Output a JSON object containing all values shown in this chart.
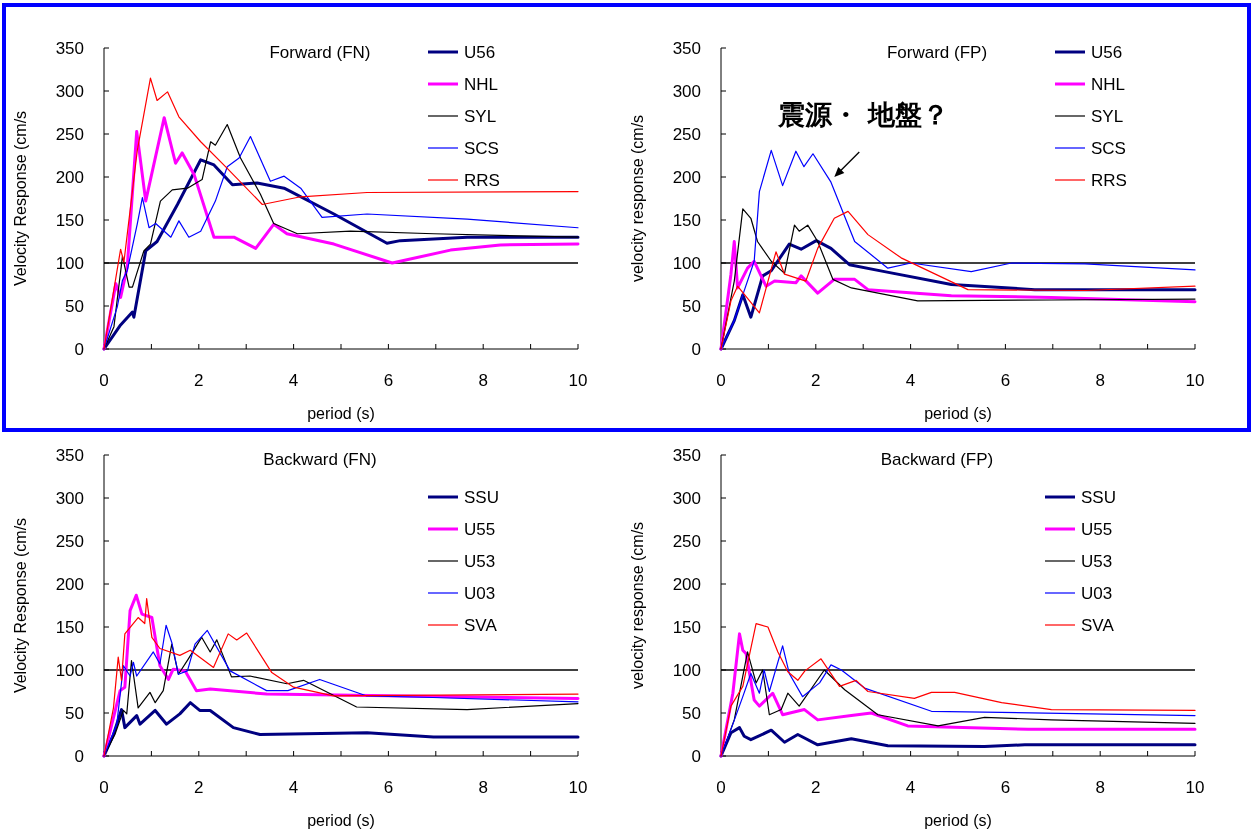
{
  "chart_data": [
    {
      "type": "line",
      "title": "Forward (FN)",
      "xlabel": "period (s)",
      "ylabel": "Velocity Response (cm/s",
      "xlim": [
        0,
        10
      ],
      "ylim": [
        0,
        350
      ],
      "xticks": [
        0,
        {
          "value": 1,
          "label": null
        },
        2,
        {
          "value": 3,
          "label": null
        },
        4,
        {
          "value": 5,
          "label": null
        },
        6,
        {
          "value": 7,
          "label": null
        },
        8,
        {
          "value": 9,
          "label": null
        },
        10
      ],
      "yticks": [
        0,
        50,
        100,
        150,
        200,
        250,
        300,
        350
      ],
      "legend": "top right",
      "line_style": "solid",
      "ref_lines": [
        {
          "axis": "y",
          "value": 100,
          "color": "#000000"
        }
      ],
      "series": [
        {
          "name": "U56",
          "color": "#000080",
          "x": [
            0,
            0.35,
            0.6,
            0.63,
            0.88,
            1.12,
            1.55,
            2.04,
            2.32,
            2.71,
            3.23,
            3.8,
            4.85,
            5.97,
            6.25,
            7.66,
            10
          ],
          "values": [
            0,
            28,
            43,
            37,
            114,
            125,
            168,
            220,
            214,
            191,
            193,
            187,
            157,
            123,
            126,
            130,
            130
          ]
        },
        {
          "name": "NHL",
          "color": "#ff00ff",
          "x": [
            0,
            0.25,
            0.35,
            0.49,
            0.69,
            0.88,
            1.27,
            1.51,
            1.65,
            1.9,
            2.32,
            2.74,
            3.2,
            3.58,
            3.86,
            4.85,
            6.08,
            7.31,
            8.36,
            10
          ],
          "values": [
            0,
            76,
            60,
            95,
            253,
            172,
            269,
            216,
            228,
            203,
            130,
            130,
            117,
            145,
            134,
            122,
            100,
            115,
            121,
            122
          ]
        },
        {
          "name": "SYL",
          "color": "#000000",
          "x": [
            0,
            0.21,
            0.39,
            0.53,
            0.6,
            0.84,
            0.98,
            1.19,
            1.44,
            1.76,
            2.07,
            2.25,
            2.35,
            2.6,
            2.88,
            3.3,
            3.58,
            4.08,
            5.2,
            6.96,
            10
          ],
          "values": [
            0,
            26,
            108,
            72,
            72,
            114,
            122,
            172,
            185,
            187,
            197,
            241,
            237,
            261,
            222,
            180,
            146,
            134,
            137,
            134,
            130
          ]
        },
        {
          "name": "SCS",
          "color": "#0000ff",
          "x": [
            0,
            0.28,
            0.39,
            0.49,
            0.7,
            0.81,
            0.95,
            1.09,
            1.41,
            1.58,
            1.79,
            2.04,
            2.35,
            2.6,
            2.85,
            3.09,
            3.51,
            3.8,
            4.15,
            4.6,
            5.55,
            7.66,
            10
          ],
          "values": [
            0,
            49,
            80,
            91,
            145,
            176,
            141,
            146,
            130,
            149,
            130,
            137,
            172,
            212,
            222,
            247,
            195,
            201,
            187,
            153,
            157,
            151,
            141
          ]
        },
        {
          "name": "RRS",
          "color": "#ff0000",
          "x": [
            0,
            0.35,
            0.42,
            0.7,
            0.98,
            1.12,
            1.34,
            1.58,
            2.04,
            2.6,
            3.34,
            4.15,
            5.55,
            10
          ],
          "values": [
            0,
            116,
            101,
            230,
            315,
            289,
            299,
            270,
            241,
            210,
            168,
            177,
            182,
            183
          ]
        }
      ]
    },
    {
      "type": "line",
      "title": "Forward (FP)",
      "xlabel": "period (s)",
      "ylabel": "velocity response (cm/s",
      "xlim": [
        0,
        10
      ],
      "ylim": [
        0,
        350
      ],
      "xticks": [
        0,
        {
          "value": 1,
          "label": null
        },
        2,
        {
          "value": 3,
          "label": null
        },
        4,
        {
          "value": 5,
          "label": null
        },
        6,
        {
          "value": 7,
          "label": null
        },
        8,
        {
          "value": 9,
          "label": null
        },
        10
      ],
      "yticks": [
        0,
        50,
        100,
        150,
        200,
        250,
        300,
        350
      ],
      "legend": "top right",
      "line_style": "solid",
      "ref_lines": [
        {
          "axis": "y",
          "value": 100,
          "color": "#000000"
        }
      ],
      "annotations": [
        {
          "text": "震源・ 地盤？",
          "x": 2.39,
          "y": 200
        }
      ],
      "series": [
        {
          "name": "U56",
          "color": "#000080",
          "x": [
            0,
            0.28,
            0.46,
            0.63,
            0.88,
            1.06,
            1.44,
            1.69,
            2.01,
            2.32,
            2.71,
            3.45,
            4.86,
            6.62,
            10
          ],
          "values": [
            0,
            33,
            63,
            37,
            85,
            91,
            122,
            116,
            126,
            117,
            98,
            90,
            75,
            69,
            69
          ]
        },
        {
          "name": "NHL",
          "color": "#ff00ff",
          "x": [
            0,
            0.21,
            0.28,
            0.35,
            0.56,
            0.7,
            0.95,
            1.13,
            1.58,
            1.69,
            2.04,
            2.39,
            2.82,
            3.1,
            4.86,
            6.97,
            10
          ],
          "values": [
            0,
            87,
            125,
            71,
            94,
            102,
            73,
            79,
            77,
            85,
            65,
            81,
            81,
            69,
            62,
            60,
            55
          ]
        },
        {
          "name": "SYL",
          "color": "#000000",
          "x": [
            0,
            0.28,
            0.46,
            0.63,
            0.77,
            1.06,
            1.34,
            1.55,
            1.65,
            1.83,
            2.04,
            2.36,
            2.75,
            4.15,
            6.97,
            10
          ],
          "values": [
            0,
            79,
            163,
            152,
            125,
            102,
            88,
            144,
            137,
            144,
            125,
            81,
            71,
            56,
            57,
            58
          ]
        },
        {
          "name": "SCS",
          "color": "#0000ff",
          "x": [
            0,
            0.28,
            0.46,
            0.7,
            0.81,
            1.06,
            1.3,
            1.58,
            1.75,
            1.94,
            2.32,
            2.82,
            3.52,
            4.01,
            5.28,
            6.13,
            7.68,
            10
          ],
          "values": [
            0,
            33,
            63,
            102,
            183,
            231,
            190,
            230,
            212,
            227,
            194,
            125,
            94,
            100,
            90,
            100,
            99,
            92
          ]
        },
        {
          "name": "RRS",
          "color": "#ff0000",
          "x": [
            0,
            0.21,
            0.35,
            0.81,
            1.16,
            1.34,
            1.79,
            2.04,
            2.39,
            2.68,
            3.1,
            3.8,
            5.21,
            7.68,
            10
          ],
          "values": [
            0,
            56,
            73,
            42,
            113,
            87,
            79,
            117,
            152,
            160,
            133,
            106,
            69,
            68,
            73
          ]
        }
      ]
    },
    {
      "type": "line",
      "title": "Backward (FN)",
      "xlabel": "period (s)",
      "ylabel": "Velocity Response (cm/s",
      "xlim": [
        0,
        10
      ],
      "ylim": [
        0,
        350
      ],
      "xticks": [
        0,
        {
          "value": 1,
          "label": null
        },
        2,
        {
          "value": 3,
          "label": null
        },
        4,
        {
          "value": 5,
          "label": null
        },
        6,
        {
          "value": 7,
          "label": null
        },
        8,
        {
          "value": 9,
          "label": null
        },
        10
      ],
      "yticks": [
        0,
        50,
        100,
        150,
        200,
        250,
        300,
        350
      ],
      "legend": "top right",
      "line_style": "solid",
      "ref_lines": [
        {
          "axis": "y",
          "value": 100,
          "color": "#000000"
        }
      ],
      "series": [
        {
          "name": "SSU",
          "color": "#000080",
          "x": [
            0,
            0.2,
            0.37,
            0.44,
            0.69,
            0.76,
            1.08,
            1.32,
            1.6,
            1.82,
            2.02,
            2.24,
            2.73,
            3.29,
            5.55,
            6.95,
            10
          ],
          "values": [
            0,
            25,
            54,
            33,
            47,
            37,
            53,
            37,
            49,
            62,
            53,
            53,
            33,
            25,
            27,
            22,
            22
          ]
        },
        {
          "name": "U55",
          "color": "#ff00ff",
          "x": [
            0,
            0.34,
            0.44,
            0.55,
            0.68,
            0.8,
            1.01,
            1.18,
            1.36,
            1.46,
            1.71,
            1.95,
            2.24,
            3.43,
            10
          ],
          "values": [
            0,
            76,
            80,
            169,
            187,
            165,
            161,
            105,
            89,
            101,
            99,
            76,
            78,
            72,
            67
          ]
        },
        {
          "name": "U53",
          "color": "#000000",
          "x": [
            0,
            0.23,
            0.41,
            0.48,
            0.58,
            0.72,
            0.97,
            1.08,
            1.25,
            1.43,
            1.57,
            1.78,
            2.06,
            2.24,
            2.38,
            2.69,
            3.08,
            3.86,
            4.21,
            5.33,
            7.66,
            10
          ],
          "values": [
            0,
            25,
            53,
            49,
            111,
            56,
            74,
            62,
            76,
            130,
            95,
            113,
            138,
            121,
            135,
            92,
            93,
            84,
            88,
            57,
            54,
            61
          ]
        },
        {
          "name": "U03",
          "color": "#0000ff",
          "x": [
            0,
            0.27,
            0.41,
            0.55,
            0.62,
            0.69,
            1.04,
            1.18,
            1.31,
            1.43,
            1.57,
            1.76,
            1.92,
            2.18,
            2.66,
            3.43,
            3.88,
            4.55,
            5.53,
            6.94,
            10
          ],
          "values": [
            0,
            37,
            105,
            93,
            109,
            93,
            121,
            107,
            152,
            132,
            95,
            99,
            130,
            146,
            99,
            76,
            76,
            89,
            70,
            68,
            63
          ]
        },
        {
          "name": "SVA",
          "color": "#ff0000",
          "x": [
            0,
            0.2,
            0.3,
            0.37,
            0.44,
            0.72,
            0.86,
            0.9,
            1.01,
            1.18,
            1.6,
            1.82,
            2.31,
            2.62,
            2.8,
            3.01,
            3.54,
            4.0,
            4.84,
            10
          ],
          "values": [
            0,
            56,
            115,
            88,
            142,
            161,
            154,
            183,
            138,
            125,
            117,
            123,
            103,
            142,
            135,
            143,
            97,
            80,
            70,
            72
          ]
        }
      ]
    },
    {
      "type": "line",
      "title": "Backward (FP)",
      "xlabel": "period (s)",
      "ylabel": "velocity response (cm/s",
      "xlim": [
        0,
        10
      ],
      "ylim": [
        0,
        350
      ],
      "xticks": [
        0,
        {
          "value": 1,
          "label": null
        },
        2,
        {
          "value": 3,
          "label": null
        },
        4,
        {
          "value": 5,
          "label": null
        },
        6,
        {
          "value": 7,
          "label": null
        },
        8,
        {
          "value": 9,
          "label": null
        },
        10
      ],
      "yticks": [
        0,
        50,
        100,
        150,
        200,
        250,
        300,
        350
      ],
      "legend": "top right",
      "line_style": "solid",
      "ref_lines": [
        {
          "axis": "y",
          "value": 100,
          "color": "#000000"
        }
      ],
      "series": [
        {
          "name": "SSU",
          "color": "#000080",
          "x": [
            0,
            0.21,
            0.39,
            0.49,
            0.63,
            1.06,
            1.34,
            1.62,
            2.04,
            2.75,
            3.52,
            5.56,
            6.41,
            10
          ],
          "values": [
            0,
            27,
            33,
            23,
            19,
            30,
            16,
            25,
            13,
            20,
            12,
            11,
            13,
            13
          ]
        },
        {
          "name": "U55",
          "color": "#ff00ff",
          "x": [
            0,
            0.25,
            0.39,
            0.46,
            0.53,
            0.7,
            0.81,
            1.09,
            1.3,
            1.76,
            2.04,
            2.75,
            3.17,
            3.94,
            6.48,
            10
          ],
          "values": [
            0,
            73,
            142,
            123,
            119,
            65,
            58,
            73,
            48,
            54,
            42,
            47,
            50,
            35,
            31,
            31
          ]
        },
        {
          "name": "U53",
          "color": "#000000",
          "x": [
            0,
            0.28,
            0.56,
            0.74,
            0.88,
            1.02,
            1.27,
            1.41,
            1.65,
            2.18,
            2.61,
            3.31,
            4.58,
            5.56,
            6.97,
            10
          ],
          "values": [
            0,
            42,
            121,
            85,
            100,
            48,
            54,
            73,
            58,
            100,
            77,
            48,
            35,
            45,
            42,
            38
          ]
        },
        {
          "name": "U03",
          "color": "#0000ff",
          "x": [
            0,
            0.21,
            0.46,
            0.63,
            0.81,
            0.91,
            1.02,
            1.3,
            1.44,
            1.72,
            2.08,
            2.32,
            2.54,
            3.03,
            4.44,
            10
          ],
          "values": [
            0,
            31,
            69,
            96,
            73,
            100,
            75,
            128,
            96,
            69,
            85,
            106,
            100,
            79,
            52,
            47
          ]
        },
        {
          "name": "SVA",
          "color": "#ff0000",
          "x": [
            0,
            0.21,
            0.46,
            0.74,
            0.99,
            1.2,
            1.41,
            1.62,
            1.77,
            2.11,
            2.5,
            2.85,
            3.1,
            4.08,
            4.44,
            4.93,
            5.92,
            6.97,
            10
          ],
          "values": [
            0,
            58,
            81,
            154,
            150,
            121,
            98,
            88,
            99,
            113,
            81,
            88,
            75,
            67,
            74,
            74,
            62,
            54,
            53
          ]
        }
      ]
    }
  ]
}
